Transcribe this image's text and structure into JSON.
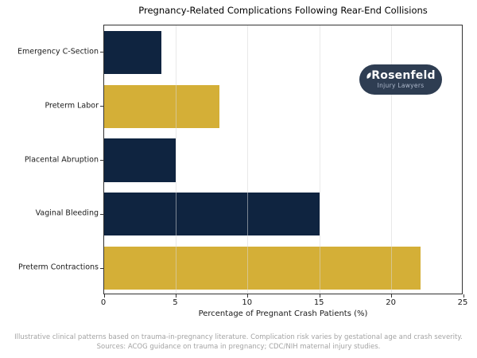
{
  "chart_data": {
    "type": "bar",
    "orientation": "horizontal",
    "title": "Pregnancy-Related Complications Following Rear-End Collisions",
    "categories": [
      "Emergency C-Section",
      "Preterm Labor",
      "Placental Abruption",
      "Vaginal Bleeding",
      "Preterm Contractions"
    ],
    "values": [
      4,
      8,
      5,
      15,
      22
    ],
    "bar_colors": [
      "#0f2440",
      "#d4af37",
      "#0f2440",
      "#0f2440",
      "#d4af37"
    ],
    "xlabel": "Percentage of Pregnant Crash Patients (%)",
    "xlim": [
      0,
      25
    ],
    "xticks": [
      0,
      5,
      10,
      15,
      20,
      25
    ],
    "grid": true,
    "gridline_color": "rgba(215,215,215,0.55)",
    "bar_height_fraction": 0.8,
    "legend": "none"
  },
  "colors": {
    "navy": "#0f2440",
    "gold": "#d4af37",
    "spine": "#333333",
    "footer_text": "#a3a3a3",
    "logo_background": "#2e3d52",
    "logo_tagline": "#aeb9cc"
  },
  "logo": {
    "brand": "Rosenfeld",
    "tagline": "Injury Lawyers"
  },
  "footer": {
    "line1": "Illustrative clinical patterns based on trauma-in-pregnancy literature. Complication risk varies by gestational age and crash severity.",
    "line2": "Sources: ACOG guidance on trauma in pregnancy; CDC/NIH maternal injury studies."
  }
}
